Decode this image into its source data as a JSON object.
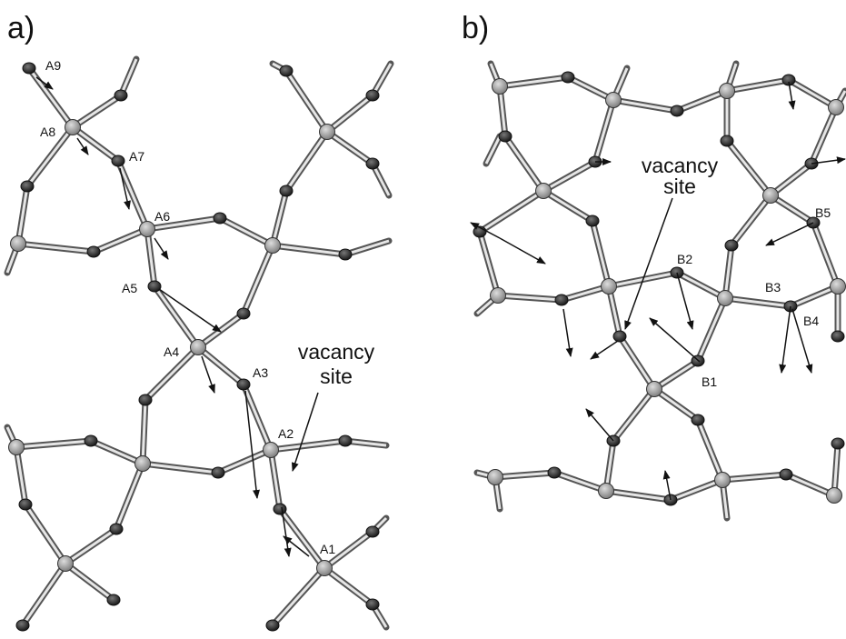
{
  "panels": [
    {
      "label": "a)",
      "atom_labels": [
        "A1",
        "A2",
        "A3",
        "A4",
        "A5",
        "A6",
        "A7",
        "A8",
        "A9"
      ],
      "annotation": [
        "vacancy",
        "site"
      ]
    },
    {
      "label": "b)",
      "atom_labels": [
        "B1",
        "B2",
        "B3",
        "B4",
        "B5"
      ],
      "annotation": [
        "vacancy",
        "site"
      ]
    }
  ]
}
